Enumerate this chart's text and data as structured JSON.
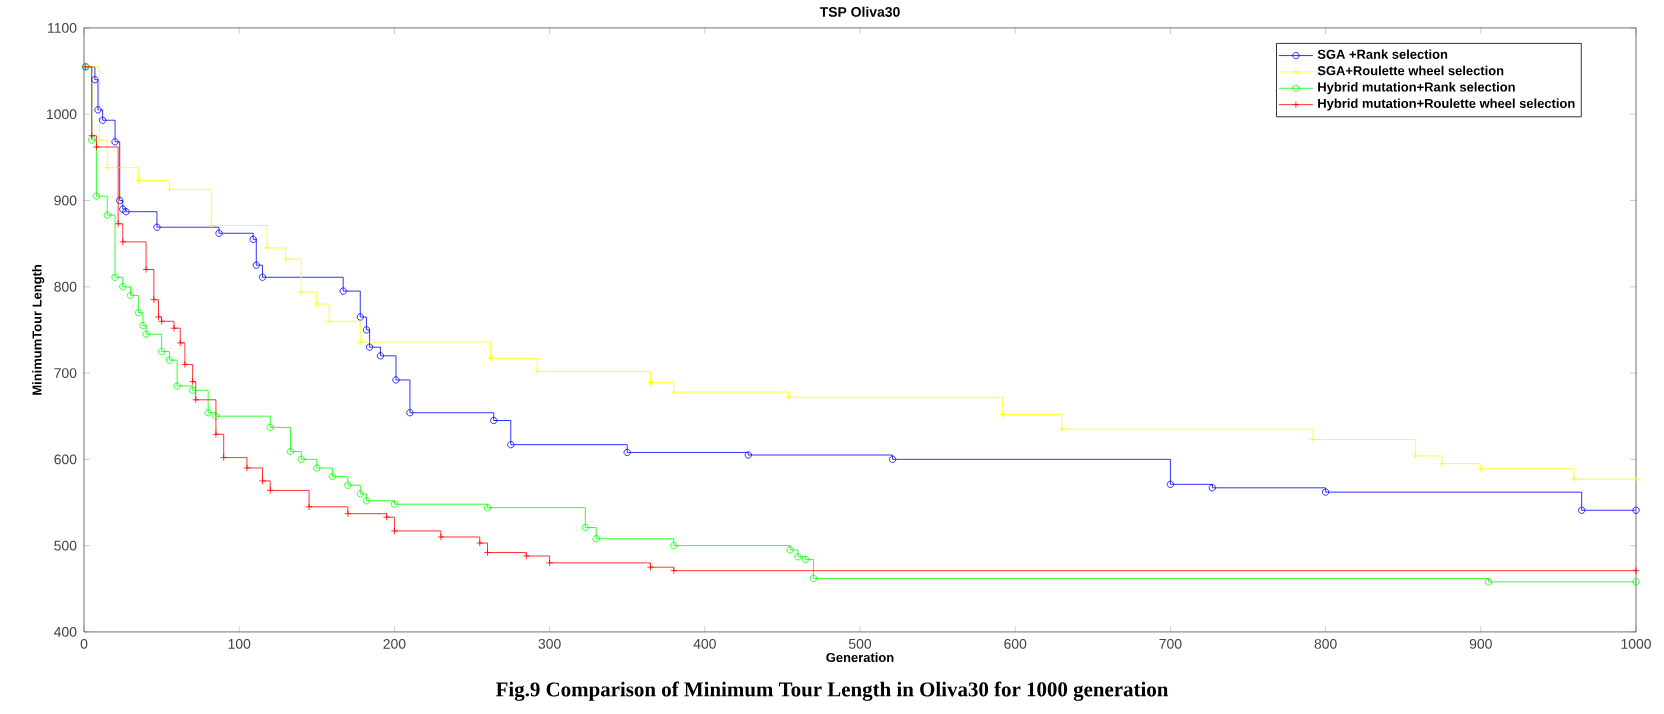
{
  "chart_data": {
    "type": "step",
    "title": "TSP Oliva30",
    "xlabel": "Generation",
    "ylabel": "MinimumTour Length",
    "annotations": [
      "Fig.9 Comparison of Minimum Tour Length in Oliva30 for 1000 generation"
    ],
    "xlim": [
      0,
      1000
    ],
    "ylim": [
      400,
      1100
    ],
    "xticks": [
      0,
      100,
      200,
      300,
      400,
      500,
      600,
      700,
      800,
      900,
      1000
    ],
    "yticks": [
      400,
      500,
      600,
      700,
      800,
      900,
      1000,
      1100
    ],
    "grid": false,
    "legend": "top right",
    "line_style": "solid",
    "series": [
      {
        "name": "SGA +Rank selection",
        "color": "#0000ff",
        "marker": "circle",
        "x": [
          1,
          7,
          9,
          12,
          20,
          23,
          25,
          27,
          47,
          87,
          109,
          111,
          115,
          167,
          178,
          182,
          184,
          191,
          201,
          210,
          264,
          275,
          350,
          428,
          521,
          700,
          727,
          800,
          965,
          1000
        ],
        "values": [
          1055,
          1040,
          1005,
          993,
          968,
          900,
          890,
          887,
          869,
          862,
          855,
          825,
          811,
          795,
          765,
          750,
          730,
          720,
          692,
          654,
          645,
          617,
          608,
          605,
          600,
          571,
          567,
          562,
          541,
          541
        ]
      },
      {
        "name": "SGA+Roulette wheel selection",
        "color": "#ffff00",
        "marker": "cross",
        "x": [
          1,
          10,
          15,
          35,
          55,
          82,
          118,
          130,
          140,
          150,
          158,
          178,
          262,
          292,
          365,
          380,
          454,
          592,
          630,
          792,
          858,
          875,
          900,
          960,
          1000
        ],
        "values": [
          1055,
          970,
          938,
          923,
          913,
          871,
          845,
          832,
          794,
          780,
          760,
          736,
          717,
          702,
          689,
          678,
          672,
          652,
          635,
          623,
          604,
          595,
          589,
          577,
          577
        ]
      },
      {
        "name": "Hybrid mutation+Rank selection",
        "color": "#00ff00",
        "marker": "circle",
        "x": [
          1,
          5,
          8,
          15,
          20,
          25,
          30,
          35,
          38,
          40,
          50,
          55,
          60,
          70,
          80,
          85,
          120,
          133,
          140,
          150,
          160,
          170,
          178,
          182,
          200,
          260,
          323,
          330,
          380,
          455,
          460,
          465,
          470,
          905,
          1000
        ],
        "values": [
          1055,
          970,
          905,
          883,
          811,
          800,
          790,
          770,
          755,
          745,
          725,
          715,
          685,
          680,
          654,
          650,
          637,
          609,
          600,
          590,
          580,
          570,
          560,
          552,
          548,
          544,
          521,
          508,
          500,
          495,
          487,
          484,
          462,
          458,
          458
        ]
      },
      {
        "name": "Hybrid mutation+Roulette wheel selection",
        "color": "#ff0000",
        "marker": "cross",
        "x": [
          1,
          5,
          8,
          22,
          25,
          40,
          45,
          48,
          50,
          58,
          62,
          65,
          70,
          72,
          85,
          90,
          105,
          115,
          120,
          145,
          170,
          195,
          200,
          230,
          255,
          260,
          285,
          300,
          365,
          380,
          1000
        ],
        "values": [
          1055,
          975,
          962,
          873,
          852,
          820,
          785,
          765,
          760,
          752,
          735,
          710,
          690,
          669,
          629,
          602,
          590,
          575,
          564,
          545,
          537,
          533,
          517,
          510,
          503,
          492,
          488,
          480,
          475,
          471,
          471
        ]
      }
    ]
  }
}
